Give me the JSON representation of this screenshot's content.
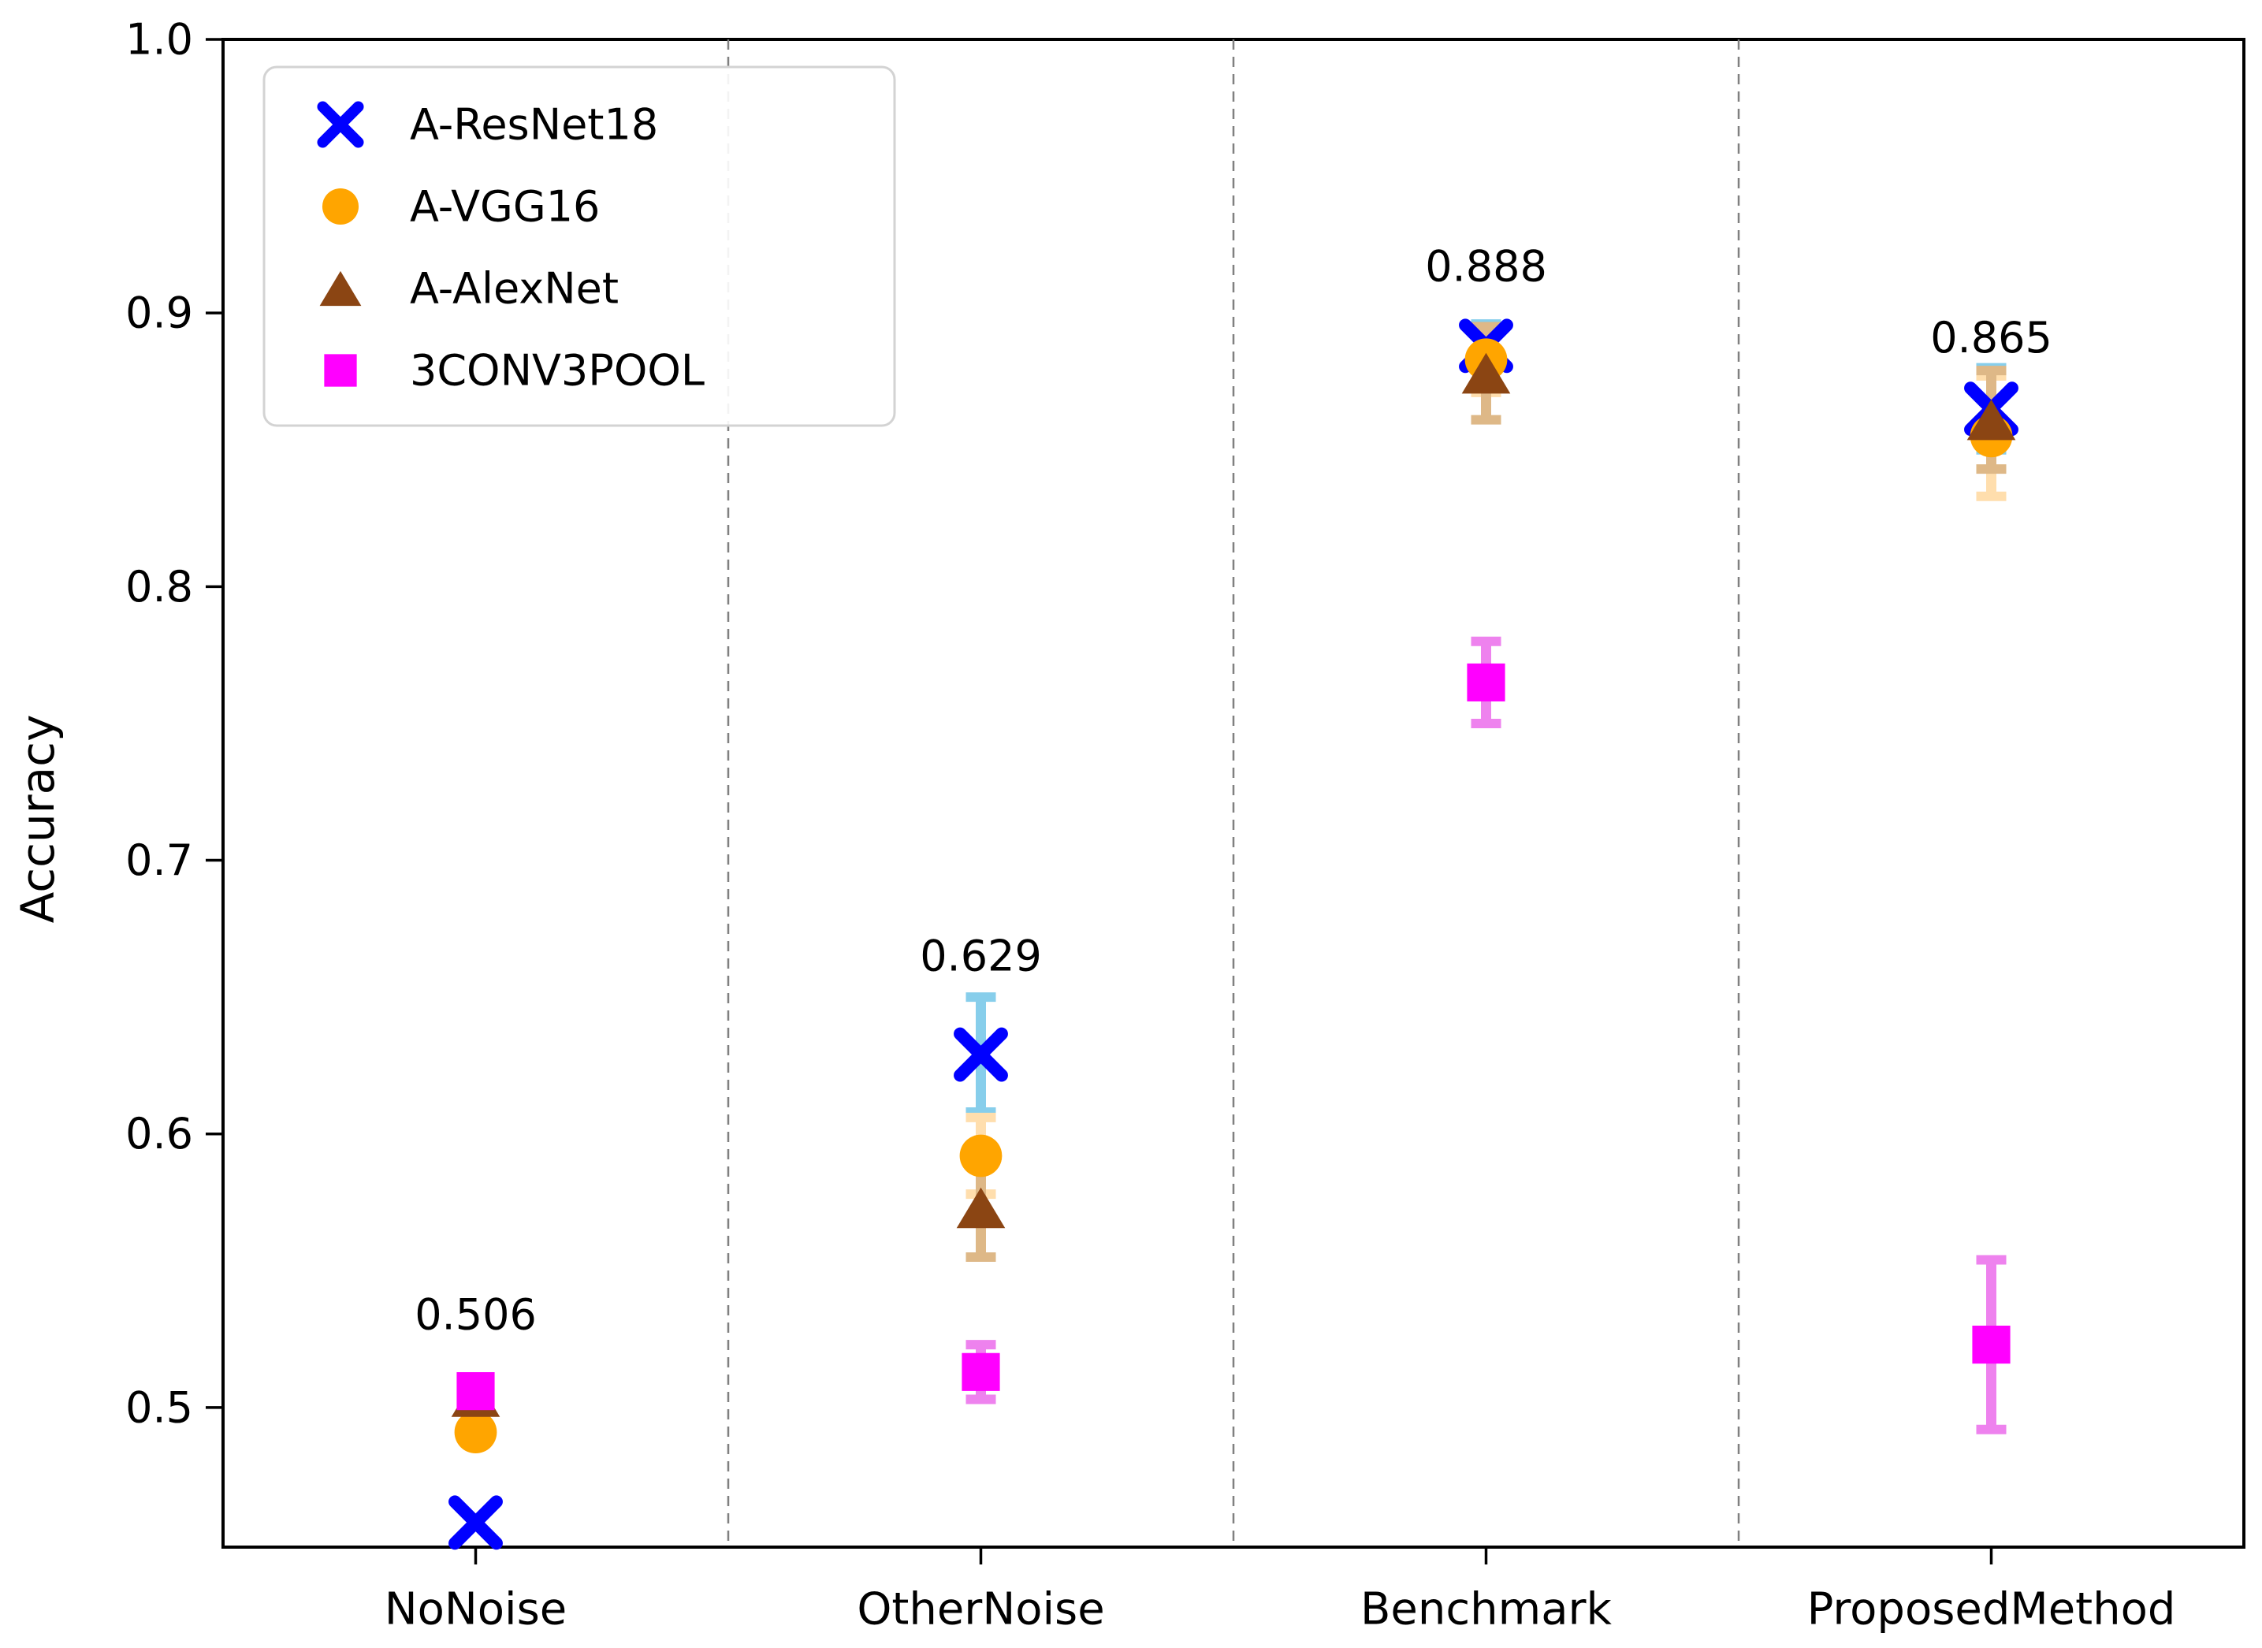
{
  "figure": {
    "background": "#ffffff",
    "text_color": "#000000",
    "axis_color": "#000000",
    "separator_color": "#808080",
    "legend_border_color": "#d3d3d3"
  },
  "chart_data": {
    "type": "scatter",
    "title": "",
    "xlabel": "",
    "ylabel": "Accuracy",
    "categories": [
      "NoNoise",
      "OtherNoise",
      "Benchmark",
      "ProposedMethod"
    ],
    "ylim": [
      0.449,
      1.0
    ],
    "yticks": [
      0.5,
      0.6,
      0.7,
      0.8,
      0.9,
      1.0
    ],
    "ytick_labels": [
      "0.5",
      "0.6",
      "0.7",
      "0.8",
      "0.9",
      "1.0"
    ],
    "grid": false,
    "category_separators": {
      "style": "dashed",
      "color": "#808080",
      "between_categories": [
        1,
        2,
        3
      ]
    },
    "legend": {
      "position": "upper-left",
      "entries": [
        "A-ResNet18",
        "A-VGG16",
        "A-AlexNet",
        "3CONV3POOL"
      ]
    },
    "series": [
      {
        "name": "A-ResNet18",
        "marker": "x",
        "color": "#0000ff",
        "error_color": "#87ceeb",
        "values": [
          0.458,
          0.629,
          0.888,
          0.865
        ],
        "errors": [
          0.0,
          0.021,
          0.008,
          0.015
        ]
      },
      {
        "name": "A-VGG16",
        "marker": "circle",
        "color": "#ffa500",
        "error_color": "#ffdead",
        "values": [
          0.491,
          0.592,
          0.883,
          0.855
        ],
        "errors": [
          0.0,
          0.014,
          0.012,
          0.022
        ]
      },
      {
        "name": "A-AlexNet",
        "marker": "triangle-up",
        "color": "#8b4513",
        "error_color": "#deb887",
        "values": [
          0.504,
          0.573,
          0.878,
          0.861
        ],
        "errors": [
          0.0,
          0.018,
          0.017,
          0.018
        ]
      },
      {
        "name": "3CONV3POOL",
        "marker": "square",
        "color": "#ff00ff",
        "error_color": "#ee82ee",
        "values": [
          0.506,
          0.513,
          0.765,
          0.523
        ],
        "errors": [
          0.0,
          0.01,
          0.015,
          0.031
        ]
      }
    ],
    "annotations": [
      {
        "text": "0.506",
        "category_index": 0,
        "y": 0.534
      },
      {
        "text": "0.629",
        "category_index": 1,
        "y": 0.665
      },
      {
        "text": "0.888",
        "category_index": 2,
        "y": 0.917
      },
      {
        "text": "0.865",
        "category_index": 3,
        "y": 0.891
      }
    ]
  }
}
